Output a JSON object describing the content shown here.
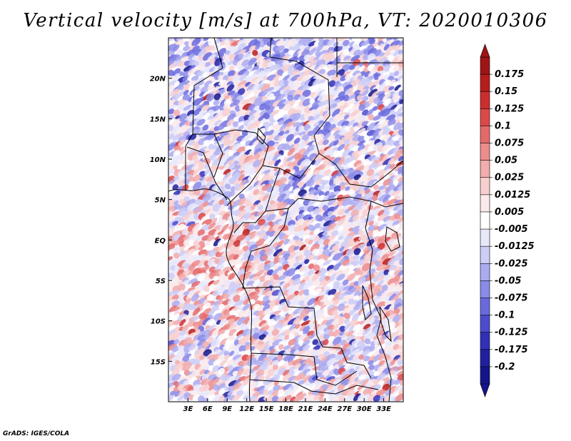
{
  "title": "Vertical velocity [m/s] at 700hPa, VT: 2020010306",
  "credit": "GrADS: IGES/COLA",
  "map": {
    "variable": "Vertical velocity",
    "units": "m/s",
    "level": "700hPa",
    "valid_time": "2020010306",
    "lon_range": [
      0,
      36
    ],
    "lat_range": [
      -20,
      25
    ],
    "x_ticks": [
      "3E",
      "6E",
      "9E",
      "12E",
      "15E",
      "18E",
      "21E",
      "24E",
      "27E",
      "30E",
      "33E"
    ],
    "x_tick_values": [
      3,
      6,
      9,
      12,
      15,
      18,
      21,
      24,
      27,
      30,
      33
    ],
    "y_ticks": [
      "20N",
      "15N",
      "10N",
      "5N",
      "EQ",
      "5S",
      "10S",
      "15S"
    ],
    "y_tick_values": [
      20,
      15,
      10,
      5,
      0,
      -5,
      -10,
      -15
    ]
  },
  "colorbar": {
    "labels": [
      "0.175",
      "0.15",
      "0.125",
      "0.1",
      "0.075",
      "0.05",
      "0.025",
      "0.0125",
      "0.005",
      "-0.005",
      "-0.0125",
      "-0.025",
      "-0.05",
      "-0.075",
      "-0.1",
      "-0.125",
      "-0.175",
      "-0.2"
    ],
    "colors": [
      "#a01416",
      "#b81c1c",
      "#cc2e2e",
      "#dc4848",
      "#e46a6a",
      "#ec8c8c",
      "#f2acac",
      "#f8cfcf",
      "#fce9e9",
      "#ffffff",
      "#e8e8fb",
      "#cdcdf6",
      "#ababf0",
      "#8a8ae8",
      "#6a6add",
      "#4c4cce",
      "#3030b8",
      "#2020a0",
      "#14148a"
    ],
    "top_cap_color": "#a01416",
    "bottom_cap_color": "#14148a"
  }
}
